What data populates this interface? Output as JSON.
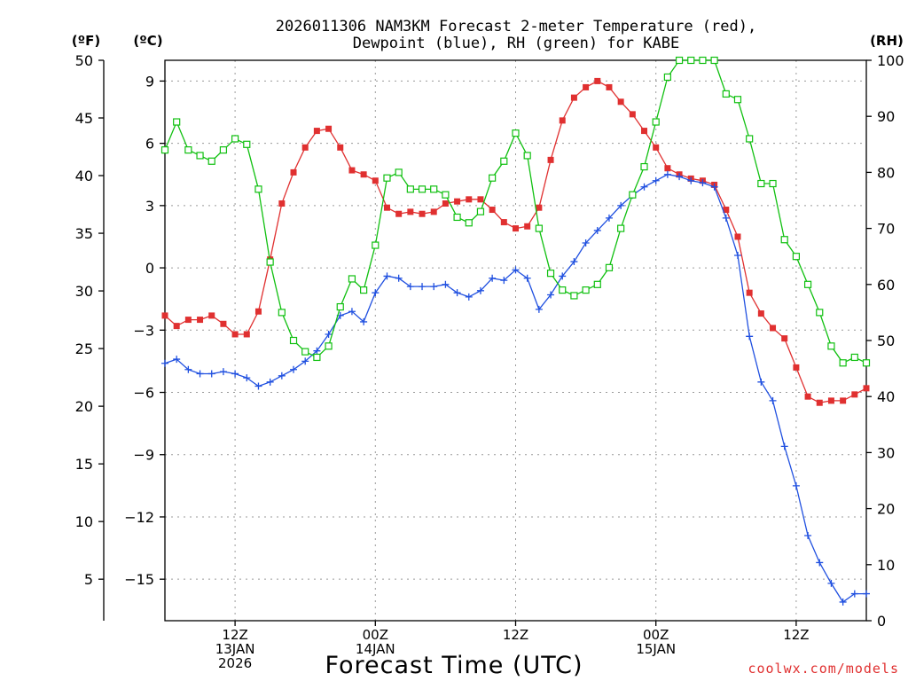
{
  "chart_data": {
    "type": "line",
    "title": "2026011306 NAM3KM Forecast 2-meter Temperature (red),",
    "title_line2": "Dewpoint (blue), RH (green) for KABE",
    "xlabel": "Forecast Time (UTC)",
    "credit": "coolwx.com/models",
    "units": {
      "fahrenheit": "(ºF)",
      "celsius": "(ºC)",
      "rh": "(RH)"
    },
    "x_range_hours": [
      0,
      60
    ],
    "y_celsius_range": [
      -17,
      10
    ],
    "y_rh_range": [
      0,
      100
    ],
    "fahrenheit_ticks": [
      "50",
      "45",
      "40",
      "35",
      "30",
      "25",
      "20",
      "15",
      "10",
      "5"
    ],
    "celsius_ticks": [
      "9",
      "6",
      "3",
      "0",
      "−3",
      "−6",
      "−9",
      "−12",
      "−15"
    ],
    "rh_ticks": [
      "100",
      "90",
      "80",
      "70",
      "60",
      "50",
      "40",
      "30",
      "20",
      "10",
      "0"
    ],
    "x_ticks": [
      {
        "hour": 6,
        "line1": "12Z",
        "line2": "13JAN",
        "line3": "2026"
      },
      {
        "hour": 18,
        "line1": "00Z",
        "line2": "14JAN",
        "line3": ""
      },
      {
        "hour": 30,
        "line1": "12Z",
        "line2": "",
        "line3": ""
      },
      {
        "hour": 42,
        "line1": "00Z",
        "line2": "15JAN",
        "line3": ""
      },
      {
        "hour": 54,
        "line1": "12Z",
        "line2": "",
        "line3": ""
      }
    ],
    "series": [
      {
        "name": "Temperature",
        "unit": "C",
        "color": "#e03030",
        "marker": "filled-square",
        "values": [
          -2.3,
          -2.8,
          -2.5,
          -2.5,
          -2.3,
          -2.7,
          -3.2,
          -3.2,
          -2.1,
          0.4,
          3.1,
          4.6,
          5.8,
          6.6,
          6.7,
          5.8,
          4.7,
          4.5,
          4.2,
          2.9,
          2.6,
          2.7,
          2.6,
          2.7,
          3.1,
          3.2,
          3.3,
          3.3,
          2.8,
          2.2,
          1.9,
          2.0,
          2.9,
          5.2,
          7.1,
          8.2,
          8.7,
          9.0,
          8.7,
          8.0,
          7.4,
          6.6,
          5.8,
          4.8,
          4.5,
          4.3,
          4.2,
          4.0,
          2.8,
          1.5,
          -1.2,
          -2.2,
          -2.9,
          -3.4,
          -4.8,
          -6.2,
          -6.5,
          -6.4,
          -6.4,
          -6.1,
          -5.8
        ]
      },
      {
        "name": "Dewpoint",
        "unit": "C",
        "color": "#2050e0",
        "marker": "plus",
        "values": [
          -4.6,
          -4.4,
          -4.9,
          -5.1,
          -5.1,
          -5.0,
          -5.1,
          -5.3,
          -5.7,
          -5.5,
          -5.2,
          -4.9,
          -4.5,
          -4.0,
          -3.2,
          -2.3,
          -2.1,
          -2.6,
          -1.2,
          -0.4,
          -0.5,
          -0.9,
          -0.9,
          -0.9,
          -0.8,
          -1.2,
          -1.4,
          -1.1,
          -0.5,
          -0.6,
          -0.1,
          -0.5,
          -2.0,
          -1.3,
          -0.4,
          0.3,
          1.2,
          1.8,
          2.4,
          3.0,
          3.5,
          3.9,
          4.2,
          4.5,
          4.4,
          4.2,
          4.1,
          3.9,
          2.4,
          0.6,
          -3.3,
          -5.5,
          -6.4,
          -8.6,
          -10.5,
          -12.9,
          -14.2,
          -15.2,
          -16.1,
          -15.7,
          -15.7
        ]
      },
      {
        "name": "RH",
        "unit": "%",
        "color": "#10c010",
        "marker": "open-square",
        "values": [
          84,
          89,
          84,
          83,
          82,
          84,
          86,
          85,
          77,
          64,
          55,
          50,
          48,
          47,
          49,
          56,
          61,
          59,
          67,
          79,
          80,
          77,
          77,
          77,
          76,
          72,
          71,
          73,
          79,
          82,
          87,
          83,
          70,
          62,
          59,
          58,
          59,
          60,
          63,
          70,
          76,
          81,
          89,
          97,
          100,
          100,
          100,
          100,
          94,
          93,
          86,
          78,
          78,
          68,
          65,
          60,
          55,
          49,
          46,
          47,
          46
        ]
      }
    ]
  }
}
